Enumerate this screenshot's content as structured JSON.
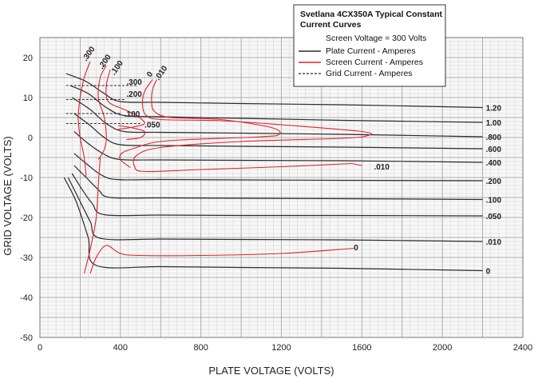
{
  "colors": {
    "background": "#ffffff",
    "grid_minor": "#cfcfcf",
    "grid_major": "#9a9a9a",
    "plate": "#2a2a2a",
    "screen": "#e0242a",
    "grid_current": "#2a2a2a"
  },
  "chart_data": {
    "type": "line",
    "title": "Svetlana 4CX350A Typical Constant Current Curves",
    "xlabel": "PLATE VOLTAGE (VOLTS)",
    "ylabel": "GRID VOLTAGE (VOLTS)",
    "xlim": [
      0,
      2400
    ],
    "ylim": [
      -50,
      25
    ],
    "x_ticks": [
      0,
      400,
      800,
      1200,
      1600,
      2000,
      2400
    ],
    "y_ticks": [
      20,
      10,
      0,
      -10,
      -20,
      -30,
      -40,
      -50
    ],
    "grid": true,
    "legend_position": "top-right",
    "legend": {
      "title": "Svetlana 4CX350A Typical Constant Current Curves",
      "condition": "Screen Voltage = 300 Volts",
      "entries": [
        {
          "label": "Plate Current - Amperes",
          "style": "plate"
        },
        {
          "label": "Screen Current - Amperes",
          "style": "screen"
        },
        {
          "label": "Grid Current - Amperes",
          "style": "grid_current"
        }
      ]
    },
    "series": [
      {
        "group": "plate",
        "name": "1.20",
        "label": "1.20",
        "x": [
          130,
          230,
          320,
          400,
          600,
          1000,
          1500,
          2200
        ],
        "y": [
          16,
          14,
          11,
          9,
          8.8,
          8.5,
          8.2,
          7.5
        ]
      },
      {
        "group": "plate",
        "name": "1.00",
        "label": "1.00",
        "x": [
          150,
          240,
          330,
          420,
          600,
          1000,
          1500,
          2200
        ],
        "y": [
          13,
          11,
          7.5,
          5.5,
          5.2,
          4.8,
          4.3,
          3.8
        ]
      },
      {
        "group": "plate",
        "name": ".800",
        "label": ".800",
        "x": [
          160,
          250,
          330,
          420,
          600,
          1000,
          1500,
          2200
        ],
        "y": [
          10,
          7,
          3.5,
          1.5,
          1.3,
          1.1,
          0.8,
          0.2
        ]
      },
      {
        "group": "plate",
        "name": ".600",
        "label": ".600",
        "x": [
          170,
          250,
          320,
          400,
          600,
          1000,
          1500,
          2200
        ],
        "y": [
          6,
          3,
          0,
          -1.8,
          -2.0,
          -2.2,
          -2.4,
          -2.8
        ]
      },
      {
        "group": "plate",
        "name": ".400",
        "label": ".400",
        "x": [
          170,
          240,
          320,
          400,
          600,
          1000,
          1500,
          2200
        ],
        "y": [
          1.5,
          -1.5,
          -4.2,
          -5.5,
          -5.6,
          -5.7,
          -5.8,
          -6.2
        ]
      },
      {
        "group": "plate",
        "name": ".200",
        "label": ".200",
        "x": [
          170,
          230,
          300,
          380,
          600,
          1000,
          1500,
          2200
        ],
        "y": [
          -4,
          -6.5,
          -9.2,
          -10.5,
          -10.5,
          -10.6,
          -10.7,
          -10.8
        ]
      },
      {
        "group": "plate",
        "name": ".100",
        "label": ".100",
        "x": [
          170,
          230,
          290,
          350,
          600,
          1000,
          1500,
          2200
        ],
        "y": [
          -7,
          -10,
          -13,
          -15,
          -15.1,
          -15.2,
          -15.3,
          -15.5
        ]
      },
      {
        "group": "plate",
        "name": ".050",
        "label": ".050",
        "x": [
          160,
          210,
          260,
          320,
          600,
          1000,
          1500,
          2200
        ],
        "y": [
          -9,
          -13,
          -16.5,
          -19.3,
          -19.4,
          -19.5,
          -19.5,
          -19.6
        ]
      },
      {
        "group": "plate",
        "name": ".010",
        "label": ".010",
        "x": [
          140,
          190,
          250,
          300,
          600,
          1000,
          1500,
          2200
        ],
        "y": [
          -10,
          -15,
          -21,
          -25.2,
          -25.4,
          -25.5,
          -25.6,
          -26.0
        ]
      },
      {
        "group": "plate",
        "name": "0",
        "label": "0",
        "x": [
          120,
          180,
          240,
          280,
          600,
          1000,
          1500,
          2200
        ],
        "y": [
          -10,
          -16,
          -25,
          -32,
          -32.3,
          -32.5,
          -32.7,
          -33.3
        ]
      },
      {
        "group": "screen",
        "name": "0 (upper)",
        "label": "0",
        "x": [
          560,
          520,
          510,
          530,
          600,
          900,
          1200,
          1600,
          1630,
          1500,
          1000,
          600,
          480,
          470,
          520,
          800,
          1200,
          1550
        ],
        "y": [
          14.5,
          11.5,
          8,
          5.5,
          4.5,
          4.2,
          3.2,
          1.5,
          0.5,
          -0.2,
          -1.0,
          -2.5,
          -4.5,
          -7.2,
          -8.5,
          -8.0,
          -7.3,
          -6.5
        ]
      },
      {
        "group": "screen",
        "name": ".010 (upper)",
        "label": ".010",
        "x": [
          580,
          560,
          555,
          570,
          650,
          900,
          1150,
          1190,
          1100,
          700,
          560,
          480,
          410,
          400,
          450
        ],
        "y": [
          14.5,
          12,
          9,
          6.5,
          5.0,
          4.5,
          2.5,
          0.8,
          0.2,
          -0.6,
          -1.3,
          -2.5,
          -3.8,
          -5.5,
          -7.5
        ]
      },
      {
        "group": "screen",
        "name": ".010 (right)",
        "label": ".010",
        "x": [
          1550,
          1600
        ],
        "y": [
          -6.5,
          -7.0
        ]
      },
      {
        "group": "screen",
        "name": ".050",
        "label": ".050",
        "x": [
          390,
          450,
          520,
          500,
          430
        ],
        "y": [
          3.0,
          2.5,
          1.5,
          0.0,
          -0.5
        ]
      },
      {
        "group": "screen",
        "name": ".100",
        "label": ".100",
        "x": [
          350,
          330,
          340,
          420,
          480,
          520,
          450,
          380
        ],
        "y": [
          17,
          13,
          9,
          7,
          5.5,
          3.5,
          2.5,
          2.0
        ]
      },
      {
        "group": "screen",
        "name": ".200",
        "label": ".200",
        "x": [
          330,
          300,
          290,
          320,
          330,
          320,
          290
        ],
        "y": [
          18,
          15,
          10,
          5,
          0,
          -3.0,
          -5.5
        ]
      },
      {
        "group": "screen",
        "name": ".300",
        "label": ".300",
        "x": [
          250,
          220,
          200,
          190,
          200,
          220,
          230
        ],
        "y": [
          19,
          15,
          10,
          5,
          0,
          -5.0,
          -10
        ]
      },
      {
        "group": "screen",
        "name": "0 (lower)",
        "label": "0",
        "x": [
          250,
          280,
          330,
          400,
          500,
          800,
          1200,
          1560
        ],
        "y": [
          -34,
          -30,
          -27,
          -29,
          -29.5,
          -29.5,
          -29.0,
          -27.7
        ]
      },
      {
        "group": "screen",
        "name": "lower envelope",
        "label": "",
        "x": [
          220,
          250,
          280,
          290,
          300
        ],
        "y": [
          -34,
          -28,
          -20,
          -12,
          -5.0
        ]
      },
      {
        "group": "grid_current",
        "name": ".300",
        "label": ".300",
        "x": [
          130,
          200,
          300,
          400,
          480
        ],
        "y": [
          13,
          13,
          13,
          13,
          13
        ]
      },
      {
        "group": "grid_current",
        "name": ".200",
        "label": ".200",
        "x": [
          130,
          200,
          300,
          400,
          420
        ],
        "y": [
          9.5,
          9.5,
          9.5,
          9.5,
          9.5
        ]
      },
      {
        "group": "grid_current",
        "name": ".100",
        "label": ".100",
        "x": [
          130,
          200,
          300,
          400
        ],
        "y": [
          6,
          6,
          6,
          6
        ]
      },
      {
        "group": "grid_current",
        "name": ".050",
        "label": ".050",
        "x": [
          130,
          200,
          300,
          400,
          500
        ],
        "y": [
          3.5,
          3.5,
          3.5,
          3.5,
          3.5
        ]
      }
    ],
    "annotations": [
      {
        "text": ".300",
        "x": 230,
        "y": 19
      },
      {
        "text": ".200",
        "x": 310,
        "y": 17
      },
      {
        "text": ".100",
        "x": 370,
        "y": 15.5
      },
      {
        "text": "0",
        "x": 550,
        "y": 15
      },
      {
        "text": ".010",
        "x": 590,
        "y": 14.2
      },
      {
        "text": ".300",
        "x": 430,
        "y": 13.2
      },
      {
        "text": ".200",
        "x": 430,
        "y": 10.2
      },
      {
        "text": ".100",
        "x": 420,
        "y": 5.2
      },
      {
        "text": ".050",
        "x": 520,
        "y": 2.5
      },
      {
        "text": ".010",
        "x": 1660,
        "y": -8.0
      },
      {
        "text": "0",
        "x": 1560,
        "y": -28.2
      }
    ]
  }
}
